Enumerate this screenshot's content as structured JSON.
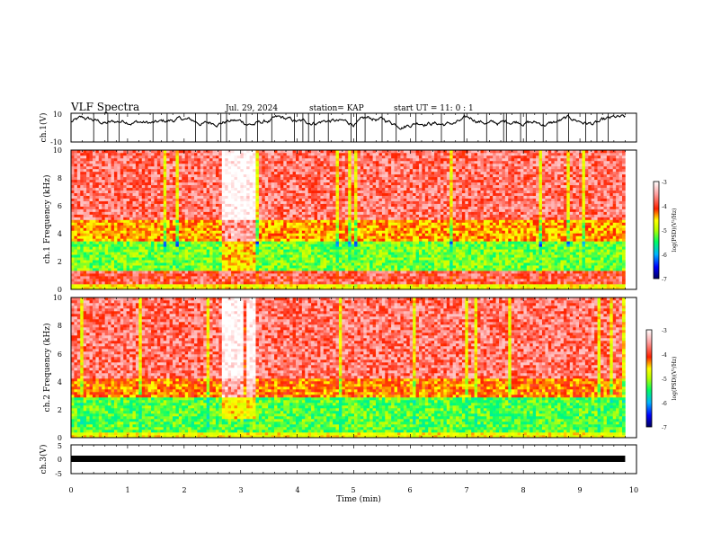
{
  "header": {
    "title": "VLF Spectra",
    "date": "Jul. 29, 2024",
    "station": "station= KAP",
    "start_ut": "start UT = 11: 0 : 1"
  },
  "chart_data": [
    {
      "type": "line",
      "panel": "ch1-waveform",
      "ylabel": "ch.1(V)",
      "ylim": [
        -10,
        10
      ],
      "y_tick_labels": [
        "10",
        "-10"
      ],
      "baseline_level": 4,
      "x_range": [
        0,
        9.8
      ],
      "spike_times": [
        0.0,
        0.4,
        0.65,
        0.85,
        1.45,
        1.7,
        2.2,
        2.4,
        2.65,
        2.75,
        3.1,
        3.3,
        3.55,
        3.95,
        4.1,
        4.2,
        4.3,
        4.55,
        4.95,
        5.05,
        5.2,
        5.5,
        5.75,
        6.1,
        6.55,
        6.95,
        7.35,
        7.65,
        7.7,
        7.95,
        8.05,
        8.35,
        8.6,
        8.8,
        9.1,
        9.3,
        9.5
      ]
    },
    {
      "type": "heatmap",
      "panel": "ch1-spectrogram",
      "ylabel": "ch.1 Frequency (kHz)",
      "xlim": [
        0,
        10
      ],
      "ylim": [
        0,
        10
      ],
      "y_tick_labels": [
        "0",
        "2",
        "4",
        "6",
        "8",
        "10"
      ],
      "data_extent_min": 9.8,
      "bands": [
        {
          "from_khz": 0.0,
          "to_khz": 0.4,
          "level": -4.6
        },
        {
          "from_khz": 0.4,
          "to_khz": 1.3,
          "level": -3.8
        },
        {
          "from_khz": 1.3,
          "to_khz": 3.4,
          "level": -5.2
        },
        {
          "from_khz": 3.4,
          "to_khz": 5.0,
          "level": -4.3
        },
        {
          "from_khz": 5.0,
          "to_khz": 10.0,
          "level": -3.7
        }
      ],
      "bright_interval_min": [
        2.65,
        3.25
      ],
      "colorbar": {
        "label": "log(PSD)(V²/Hz)",
        "range": [
          -7,
          -3
        ],
        "tick_labels": [
          "-3",
          "-4",
          "-5",
          "-6",
          "-7"
        ]
      }
    },
    {
      "type": "heatmap",
      "panel": "ch2-spectrogram",
      "ylabel": "ch.2 Frequency (kHz)",
      "xlim": [
        0,
        10
      ],
      "ylim": [
        0,
        10
      ],
      "y_tick_labels": [
        "0",
        "2",
        "4",
        "6",
        "8",
        "10"
      ],
      "data_extent_min": 9.8,
      "bands": [
        {
          "from_khz": 0.0,
          "to_khz": 0.4,
          "level": -4.6
        },
        {
          "from_khz": 0.4,
          "to_khz": 2.9,
          "level": -5.3
        },
        {
          "from_khz": 2.9,
          "to_khz": 4.2,
          "level": -4.2
        },
        {
          "from_khz": 4.2,
          "to_khz": 10.0,
          "level": -3.7
        }
      ],
      "bright_interval_min": [
        2.65,
        3.25
      ],
      "colorbar": {
        "label": "log(PSD)(V²/Hz)",
        "range": [
          -7,
          -3
        ],
        "tick_labels": [
          "-3",
          "-4",
          "-5",
          "-6",
          "-7"
        ]
      }
    },
    {
      "type": "line",
      "panel": "ch3-waveform",
      "ylabel": "ch.3(V)",
      "ylim": [
        -5,
        5
      ],
      "y_tick_labels": [
        "5",
        "0",
        "-5"
      ],
      "constant_value": 0,
      "x_range": [
        0,
        9.8
      ]
    }
  ],
  "time_axis": {
    "label": "Time (min)",
    "range": [
      0,
      10
    ],
    "tick_labels": [
      "0",
      "1",
      "2",
      "3",
      "4",
      "5",
      "6",
      "7",
      "8",
      "9",
      "10"
    ]
  },
  "colors": {
    "spectrogram_scale": [
      "#00007f",
      "#0000ff",
      "#00c8ff",
      "#00ff70",
      "#c8ff00",
      "#ffff00",
      "#ff2000",
      "#ffb0b0",
      "#ffffff"
    ]
  }
}
